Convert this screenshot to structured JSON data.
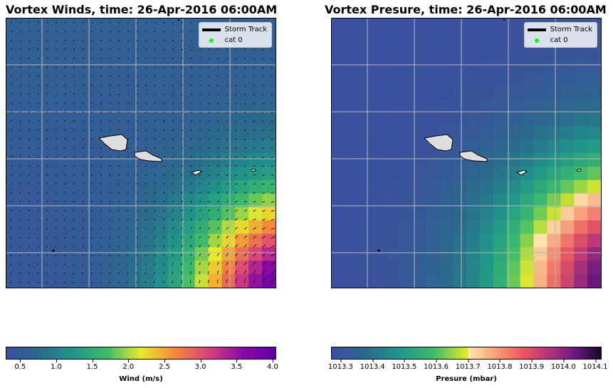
{
  "chart_data": [
    {
      "type": "heatmap",
      "title": "Vortex Winds, time: 26-Apr-2016 06:00AM",
      "legend": [
        {
          "label": "Storm Track",
          "marker": "line",
          "color": "#000000"
        },
        {
          "label": "cat 0",
          "marker": "dot",
          "color": "#00ff00"
        }
      ],
      "legend_placement": "top-right",
      "grid": true,
      "overlay": "wind vectors (quiver)",
      "colorbar": {
        "label": "Wind (m/s)",
        "range": [
          0.3,
          4.05
        ],
        "ticks": [
          "0.5",
          "1.0",
          "1.5",
          "2.0",
          "2.5",
          "3.0",
          "3.5",
          "4.0"
        ],
        "tick_values": [
          0.5,
          1.0,
          1.5,
          2.0,
          2.5,
          3.0,
          3.5,
          4.0
        ],
        "colors": [
          "#3d4da0",
          "#2a6b8b",
          "#20968a",
          "#3dbb6a",
          "#e8ea2a",
          "#f58a3a",
          "#d8427c",
          "#8b0aa5",
          "#5c00a8"
        ]
      },
      "field_description": "low (~0.5) across most of domain, rising to >4 in lower-right corner"
    },
    {
      "type": "heatmap",
      "title": "Vortex Presure, time: 26-Apr-2016 06:00AM",
      "legend": [
        {
          "label": "Storm Track",
          "marker": "line",
          "color": "#000000"
        },
        {
          "label": "cat 0",
          "marker": "dot",
          "color": "#00ff00"
        }
      ],
      "legend_placement": "top-right",
      "grid": true,
      "colorbar": {
        "label": "Presure (mbar)",
        "range": [
          1013.27,
          1014.12
        ],
        "ticks": [
          "1013.3",
          "1013.4",
          "1013.5",
          "1013.6",
          "1013.7",
          "1013.8",
          "1013.9",
          "1014.0",
          "1014.1"
        ],
        "tick_values": [
          1013.3,
          1013.4,
          1013.5,
          1013.6,
          1013.7,
          1013.8,
          1013.9,
          1014.0,
          1014.1
        ],
        "colors_left": [
          "#3d4da0",
          "#2a6b8b",
          "#20968a",
          "#3dbb6a",
          "#e8ea2a"
        ],
        "colors_right": [
          "#fde8b0",
          "#f7a27c",
          "#eb5b5f",
          "#b6357a",
          "#6e1a7e",
          "#0e0a2c"
        ]
      },
      "field_description": "~1013.3 upper-left rising to ~1014.1 at lower-right edge"
    }
  ]
}
